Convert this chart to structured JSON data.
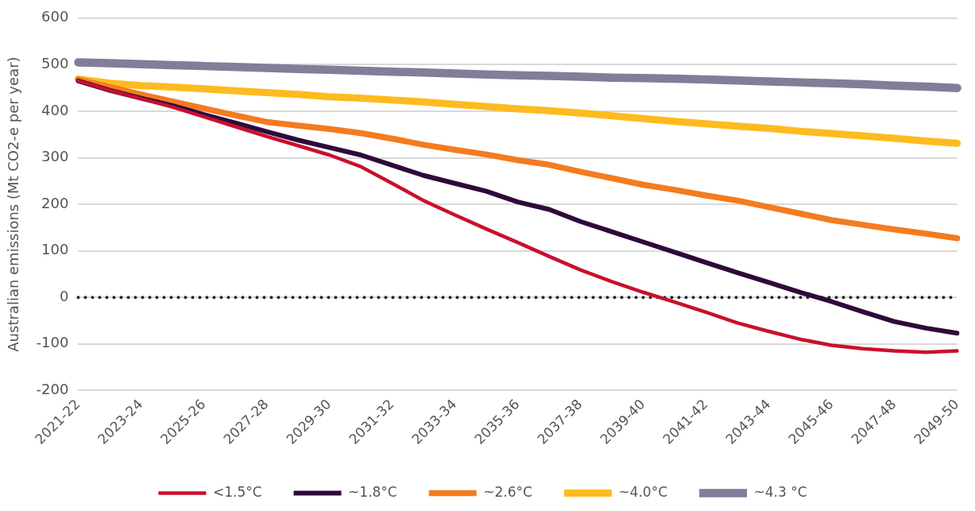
{
  "chart_data": {
    "type": "line",
    "ylabel": "Australian emissions (Mt CO2-e per year)",
    "categories": [
      "2021-22",
      null,
      "2023-24",
      null,
      "2025-26",
      null,
      "2027-28",
      null,
      "2029-30",
      null,
      "2031-32",
      null,
      "2033-34",
      null,
      "2035-36",
      null,
      "2037-38",
      null,
      "2039-40",
      null,
      "2041-42",
      null,
      "2043-44",
      null,
      "2045-46",
      null,
      "2047-48",
      null,
      "2049-50"
    ],
    "series": [
      {
        "name": "<1.5°C",
        "color": "#c8102e",
        "values": [
          465,
          445,
          427,
          409,
          388,
          367,
          346,
          326,
          306,
          281,
          245,
          208,
          177,
          147,
          118,
          88,
          59,
          34,
          11,
          -10,
          -32,
          -55,
          -73,
          -90,
          -103,
          -110,
          -115,
          -118,
          -115
        ]
      },
      {
        "name": "~1.8°C",
        "color": "#2e0a3a",
        "values": [
          465,
          445,
          428,
          412,
          393,
          375,
          356,
          338,
          322,
          306,
          284,
          262,
          245,
          228,
          205,
          189,
          163,
          141,
          119,
          97,
          75,
          53,
          32,
          11,
          -9,
          -31,
          -52,
          -66,
          -77
        ]
      },
      {
        "name": "~2.6°C",
        "color": "#f47b20",
        "values": [
          468,
          452,
          436,
          421,
          406,
          391,
          377,
          369,
          362,
          353,
          341,
          328,
          317,
          307,
          295,
          285,
          270,
          256,
          242,
          231,
          219,
          208,
          194,
          180,
          166,
          156,
          146,
          137,
          127
        ]
      },
      {
        "name": "~4.0°C",
        "color": "#fdbb1f",
        "values": [
          469,
          460,
          455,
          452,
          448,
          444,
          440,
          436,
          431,
          428,
          424,
          420,
          415,
          410,
          405,
          401,
          396,
          390,
          384,
          378,
          373,
          368,
          363,
          357,
          352,
          347,
          342,
          336,
          331
        ]
      },
      {
        "name": "~4.3 °C",
        "color": "#7f7f99",
        "values": [
          505,
          503,
          501,
          499,
          497,
          495,
          493,
          491,
          489,
          487,
          485,
          483,
          481,
          479,
          477,
          476,
          474,
          472,
          471,
          470,
          468,
          466,
          464,
          462,
          460,
          458,
          455,
          453,
          450
        ]
      }
    ],
    "ylim": [
      -200,
      600
    ],
    "yticks": [
      -200,
      -100,
      0,
      100,
      200,
      300,
      400,
      500,
      600
    ],
    "ref_lines": [
      {
        "axis": "y",
        "value": 0,
        "color": "#222222",
        "line_style": "dotted"
      }
    ],
    "grid": "y",
    "legend": "bottom",
    "marker": "none",
    "line_style": "solid"
  }
}
